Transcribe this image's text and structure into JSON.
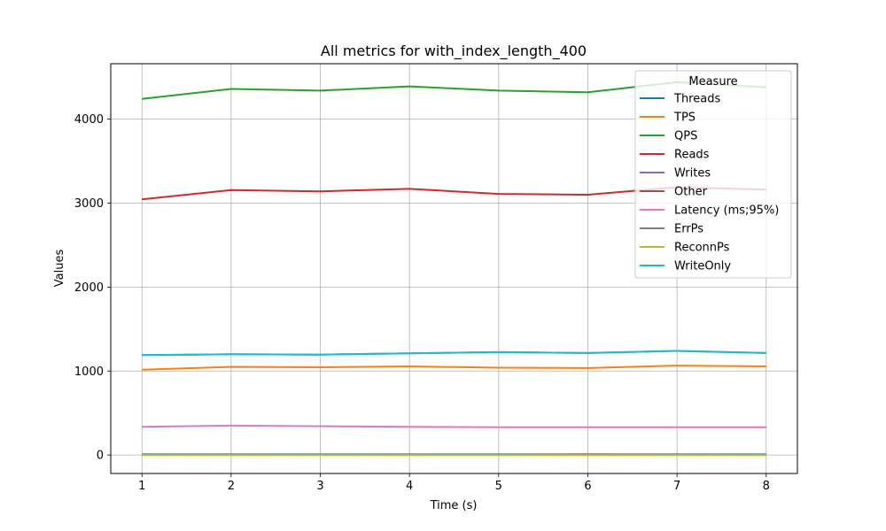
{
  "chart_data": {
    "type": "line",
    "title": "All metrics for with_index_length_400",
    "xlabel": "Time (s)",
    "ylabel": "Values",
    "x": [
      1,
      2,
      3,
      4,
      5,
      6,
      7,
      8
    ],
    "xticks": [
      1,
      2,
      3,
      4,
      5,
      6,
      7,
      8
    ],
    "yticks": [
      0,
      1000,
      2000,
      3000,
      4000
    ],
    "xlim": [
      0.65,
      8.35
    ],
    "ylim": [
      -220,
      4660
    ],
    "grid": true,
    "legend": {
      "title": "Measure",
      "placement": "top-right"
    },
    "series": [
      {
        "name": "Threads",
        "color": "#1f77b4",
        "values": [
          8,
          8,
          8,
          8,
          8,
          8,
          8,
          8
        ]
      },
      {
        "name": "TPS",
        "color": "#ff7f0e",
        "values": [
          1015,
          1050,
          1045,
          1055,
          1040,
          1035,
          1065,
          1055
        ]
      },
      {
        "name": "QPS",
        "color": "#2ca02c",
        "values": [
          4240,
          4360,
          4340,
          4390,
          4340,
          4320,
          4440,
          4380
        ]
      },
      {
        "name": "Reads",
        "color": "#d62728",
        "values": [
          3045,
          3155,
          3140,
          3170,
          3110,
          3100,
          3190,
          3160
        ]
      },
      {
        "name": "Writes",
        "color": "#9467bd",
        "values": [
          1190,
          1200,
          1195,
          1210,
          1225,
          1215,
          1240,
          1215
        ]
      },
      {
        "name": "Other",
        "color": "#8c564b",
        "values": [
          2,
          3,
          2,
          3,
          2,
          8,
          4,
          2
        ]
      },
      {
        "name": "Latency (ms;95%)",
        "color": "#e377c2",
        "values": [
          335,
          350,
          343,
          335,
          330,
          330,
          330,
          330
        ]
      },
      {
        "name": "ErrPs",
        "color": "#7f7f7f",
        "values": [
          0,
          0,
          0,
          0,
          0,
          0,
          0,
          0
        ]
      },
      {
        "name": "ReconnPs",
        "color": "#bcbd22",
        "values": [
          0,
          0,
          0,
          0,
          0,
          0,
          0,
          0
        ]
      },
      {
        "name": "WriteOnly",
        "color": "#17becf",
        "values": [
          1190,
          1200,
          1195,
          1210,
          1225,
          1215,
          1240,
          1215
        ]
      }
    ]
  }
}
